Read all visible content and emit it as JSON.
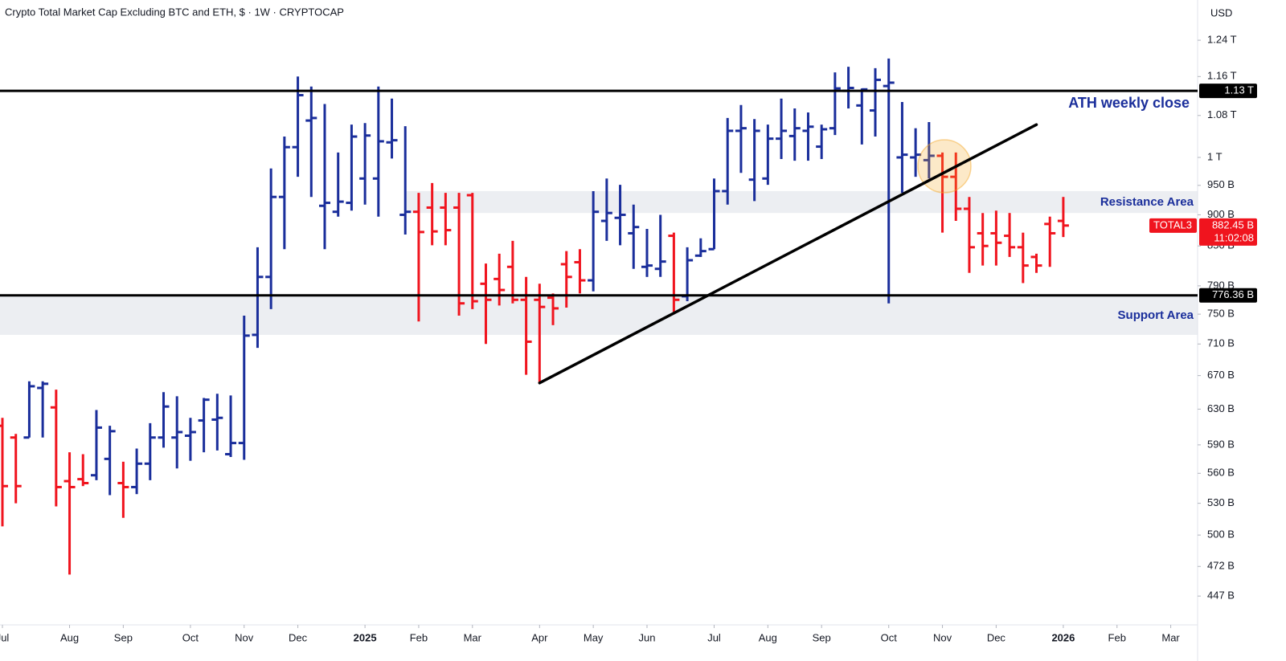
{
  "chart_data": {
    "type": "ohlc",
    "title": "Crypto Total Market Cap Excluding BTC and ETH, $ · 1W · CRYPTOCAP",
    "currency": "USD",
    "log_y": true,
    "up_color": "#1a2e9b",
    "down_color": "#f0141e",
    "xlim": [
      -0.18,
      89
    ],
    "xticks": [
      {
        "value": 0,
        "label": "Jul"
      },
      {
        "value": 5,
        "label": "Aug"
      },
      {
        "value": 9,
        "label": "Sep"
      },
      {
        "value": 14,
        "label": "Oct"
      },
      {
        "value": 18,
        "label": "Nov"
      },
      {
        "value": 22,
        "label": "Dec"
      },
      {
        "value": 27,
        "label": "2025"
      },
      {
        "value": 31,
        "label": "Feb"
      },
      {
        "value": 35,
        "label": "Mar"
      },
      {
        "value": 40,
        "label": "Apr"
      },
      {
        "value": 44,
        "label": "May"
      },
      {
        "value": 48,
        "label": "Jun"
      },
      {
        "value": 53,
        "label": "Jul"
      },
      {
        "value": 57,
        "label": "Aug"
      },
      {
        "value": 61,
        "label": "Sep"
      },
      {
        "value": 66,
        "label": "Oct"
      },
      {
        "value": 70,
        "label": "Nov"
      },
      {
        "value": 74,
        "label": "Dec"
      },
      {
        "value": 79,
        "label": "2026"
      },
      {
        "value": 83,
        "label": "Feb"
      },
      {
        "value": 87,
        "label": "Mar"
      }
    ],
    "ylim": [
      424,
      1335
    ],
    "yticks": [
      {
        "value": 1240,
        "label": "1.24 T"
      },
      {
        "value": 1160,
        "label": "1.16 T"
      },
      {
        "value": 1080,
        "label": "1.08 T"
      },
      {
        "value": 1000,
        "label": "1 T"
      },
      {
        "value": 950,
        "label": "950 B"
      },
      {
        "value": 900,
        "label": "900 B"
      },
      {
        "value": 850,
        "label": "850 B"
      },
      {
        "value": 790,
        "label": "790 B"
      },
      {
        "value": 750,
        "label": "750 B"
      },
      {
        "value": 710,
        "label": "710 B"
      },
      {
        "value": 670,
        "label": "670 B"
      },
      {
        "value": 630,
        "label": "630 B"
      },
      {
        "value": 590,
        "label": "590 B"
      },
      {
        "value": 560,
        "label": "560 B"
      },
      {
        "value": 530,
        "label": "530 B"
      },
      {
        "value": 500,
        "label": "500 B"
      },
      {
        "value": 472,
        "label": "472 B"
      },
      {
        "value": 447,
        "label": "447 B"
      }
    ],
    "open": [
      611,
      598,
      598,
      655,
      632,
      552,
      554,
      558,
      575,
      550,
      546,
      570,
      598,
      598,
      600,
      617,
      618,
      580,
      592,
      722,
      803,
      930,
      1019,
      1070,
      915,
      905,
      920,
      962,
      962,
      1028,
      900,
      905,
      912,
      912,
      912,
      933,
      793,
      800,
      818,
      770,
      770,
      773,
      822,
      825,
      798,
      890,
      895,
      870,
      818,
      815,
      866,
      775,
      835,
      845,
      940,
      1050,
      960,
      962,
      1035,
      1040,
      1050,
      1020,
      1055,
      1130,
      1100,
      1090,
      1140,
      1000,
      1000,
      995,
      1003,
      965,
      910,
      870,
      870,
      866,
      848,
      833,
      885,
      890
    ],
    "high": [
      620,
      602,
      663,
      663,
      653,
      582,
      580,
      629,
      611,
      572,
      586,
      614,
      650,
      645,
      620,
      643,
      648,
      646,
      748,
      848,
      980,
      1039,
      1160,
      1139,
      1103,
      1009,
      1062,
      1065,
      1139,
      1114,
      1059,
      937,
      954,
      937,
      937,
      937,
      823,
      838,
      858,
      803,
      793,
      779,
      842,
      845,
      940,
      962,
      951,
      917,
      877,
      900,
      871,
      848,
      862,
      962,
      1075,
      1101,
      1073,
      1062,
      1114,
      1094,
      1086,
      1062,
      1169,
      1181,
      1135,
      1178,
      1199,
      1107,
      1055,
      1067,
      1009,
      1009,
      930,
      903,
      907,
      903,
      871,
      838,
      897,
      930
    ],
    "low": [
      508,
      530,
      598,
      598,
      527,
      465,
      547,
      553,
      538,
      516,
      539,
      553,
      587,
      565,
      573,
      582,
      584,
      577,
      574,
      705,
      757,
      845,
      965,
      930,
      845,
      897,
      907,
      917,
      897,
      998,
      868,
      740,
      851,
      851,
      748,
      757,
      710,
      762,
      765,
      671,
      661,
      735,
      759,
      779,
      782,
      858,
      851,
      815,
      803,
      803,
      753,
      768,
      833,
      845,
      917,
      972,
      923,
      951,
      997,
      994,
      994,
      997,
      1042,
      1094,
      1024,
      1039,
      765,
      937,
      965,
      962,
      871,
      890,
      809,
      820,
      820,
      833,
      794,
      809,
      818,
      864
    ],
    "close": [
      547,
      547,
      657,
      660,
      546,
      546,
      550,
      609,
      605,
      546,
      570,
      598,
      633,
      604,
      604,
      641,
      620,
      592,
      721,
      803,
      930,
      1019,
      1121,
      1075,
      920,
      922,
      1039,
      1041,
      1030,
      1032,
      905,
      872,
      873,
      875,
      765,
      768,
      770,
      784,
      770,
      713,
      760,
      758,
      803,
      798,
      905,
      903,
      900,
      880,
      820,
      826,
      770,
      828,
      842,
      940,
      1050,
      1055,
      1050,
      1035,
      1050,
      1055,
      1058,
      1053,
      1135,
      1136,
      1133,
      1153,
      1147,
      1005,
      1005,
      1003,
      965,
      910,
      848,
      850,
      855,
      848,
      820,
      820,
      870,
      882.45
    ],
    "levels": [
      {
        "value": 1130,
        "label": "1.13 T",
        "text": "ATH weekly close"
      },
      {
        "value": 776.36,
        "label": "776.36 B"
      }
    ],
    "zones": [
      {
        "from": 903,
        "to": 940,
        "start": 30,
        "text": "Resistance Area"
      },
      {
        "from": 722,
        "to": 776,
        "text": "Support Area"
      }
    ],
    "trendline": {
      "x": [
        40,
        77
      ],
      "values": [
        661,
        1062
      ]
    },
    "symbol": "TOTAL3",
    "last_label": "882.45 B",
    "countdown": "11:02:08"
  }
}
